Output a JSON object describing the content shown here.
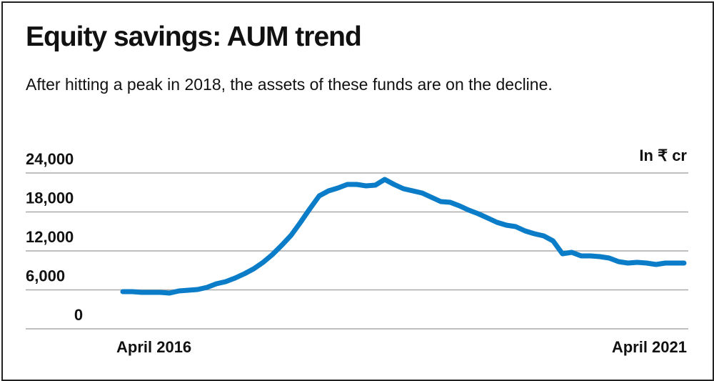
{
  "chart_data": {
    "type": "line",
    "title": "Equity savings: AUM trend",
    "subtitle": "After hitting a peak in 2018, the assets of these funds are on the decline.",
    "unit_label": "In ₹ cr",
    "categories": [
      "April 2016",
      null,
      null,
      null,
      null,
      null,
      null,
      null,
      null,
      null,
      null,
      null,
      null,
      null,
      null,
      null,
      null,
      null,
      null,
      null,
      null,
      null,
      null,
      null,
      null,
      null,
      null,
      null,
      null,
      null,
      null,
      null,
      null,
      null,
      null,
      null,
      null,
      null,
      null,
      null,
      null,
      null,
      null,
      null,
      null,
      null,
      null,
      null,
      null,
      null,
      null,
      null,
      null,
      null,
      null,
      null,
      null,
      null,
      null,
      null,
      "April 2021"
    ],
    "values": [
      5730,
      5730,
      5620,
      5620,
      5620,
      5500,
      5840,
      5950,
      6060,
      6390,
      6940,
      7270,
      7820,
      8480,
      9250,
      10240,
      11450,
      12880,
      14420,
      16400,
      18500,
      20480,
      21250,
      21690,
      22240,
      22240,
      22020,
      22130,
      23010,
      22240,
      21580,
      21250,
      20920,
      20260,
      19600,
      19490,
      18940,
      18280,
      17730,
      17070,
      16400,
      15960,
      15740,
      15080,
      14640,
      14310,
      13540,
      11560,
      11780,
      11230,
      11230,
      11120,
      10900,
      10350,
      10130,
      10240,
      10130,
      9910,
      10130,
      10130,
      10130
    ],
    "color": "#0b7dc8",
    "ylim": [
      0,
      24000
    ],
    "yticks": [
      0,
      {
        "value": 6000,
        "label": "6,000"
      },
      {
        "value": 12000,
        "label": "12,000"
      },
      {
        "value": 18000,
        "label": "18,000"
      },
      {
        "value": 24000,
        "label": "24,000"
      }
    ],
    "grid": true
  }
}
